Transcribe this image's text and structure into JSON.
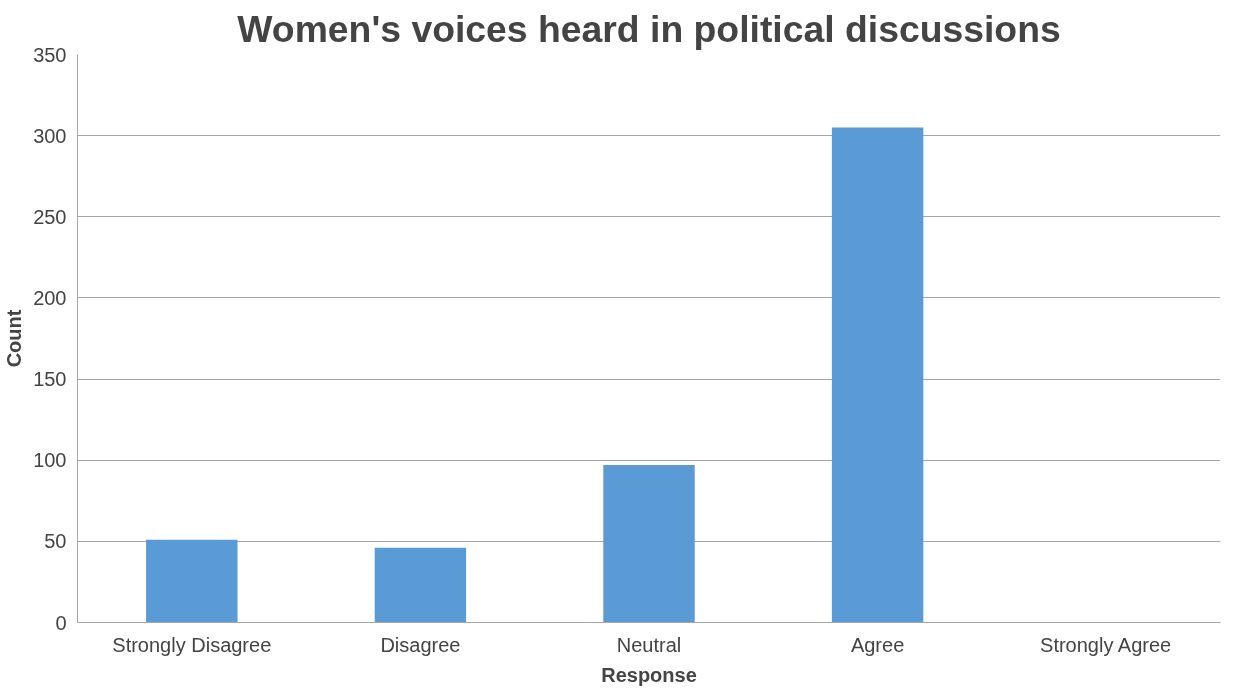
{
  "chart_data": {
    "type": "bar",
    "title": "Women's voices heard in political discussions",
    "xlabel": "Response",
    "ylabel": "Count",
    "categories": [
      "Strongly Disagree",
      "Disagree",
      "Neutral",
      "Agree",
      "Strongly Agree"
    ],
    "values": [
      51,
      46,
      97,
      305,
      0
    ],
    "color": "#5b9bd5",
    "ylim": [
      0,
      350
    ],
    "yticks": [
      0,
      50,
      100,
      150,
      200,
      250,
      300,
      350
    ],
    "grid": "y"
  }
}
